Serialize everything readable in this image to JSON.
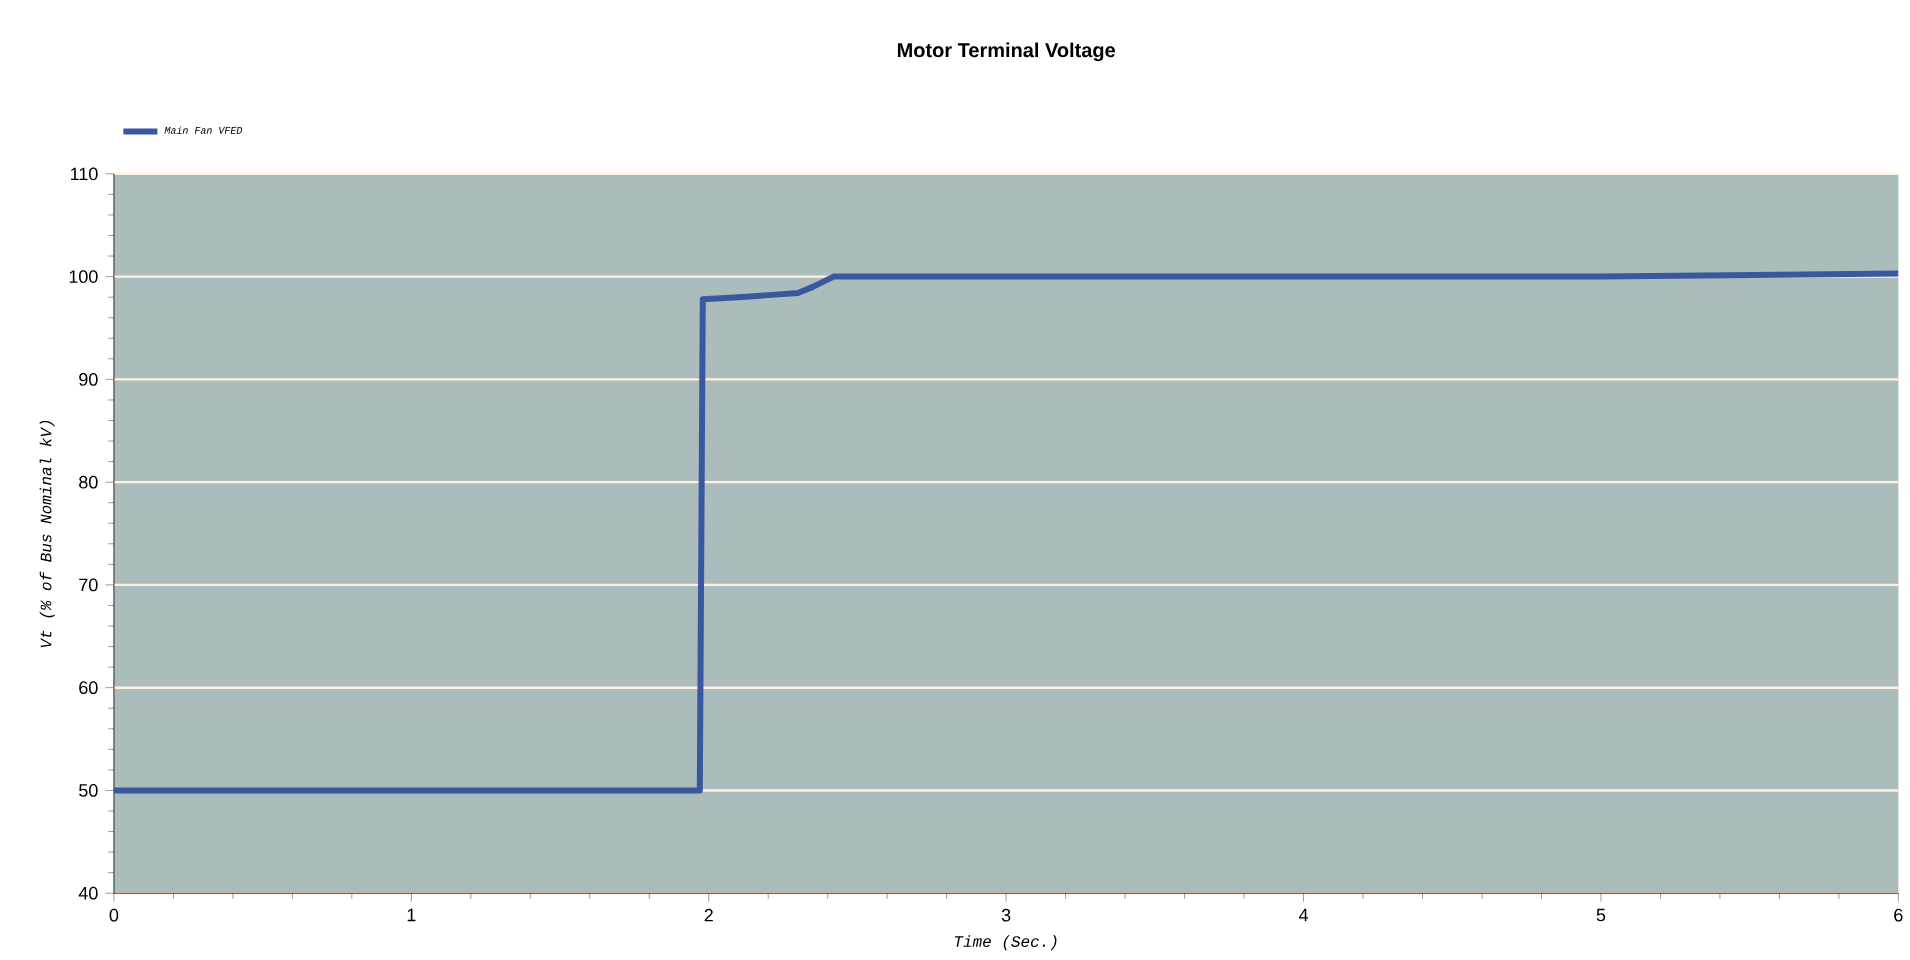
{
  "chart_data": {
    "type": "line",
    "title": "Motor Terminal Voltage",
    "xlabel": "Time (Sec.)",
    "ylabel": "Vt (% of Bus Nominal kV)",
    "xlim": [
      0,
      6
    ],
    "ylim": [
      40,
      110
    ],
    "xticks": [
      0,
      1,
      2,
      3,
      4,
      5,
      6
    ],
    "yticks": [
      40,
      50,
      60,
      70,
      80,
      90,
      100,
      110
    ],
    "grid": "y",
    "legend": "top left",
    "marker": "none",
    "line_style": "solid",
    "series": [
      {
        "name": "Main Fan VFED",
        "color": "#3a58a0",
        "x": [
          0,
          1.97,
          1.98,
          2.1,
          2.2,
          2.3,
          2.35,
          2.42,
          3,
          4,
          5,
          6
        ],
        "values": [
          50,
          50,
          97.8,
          98,
          98.2,
          98.4,
          99,
          100,
          100,
          100,
          100,
          100.3
        ]
      }
    ]
  }
}
